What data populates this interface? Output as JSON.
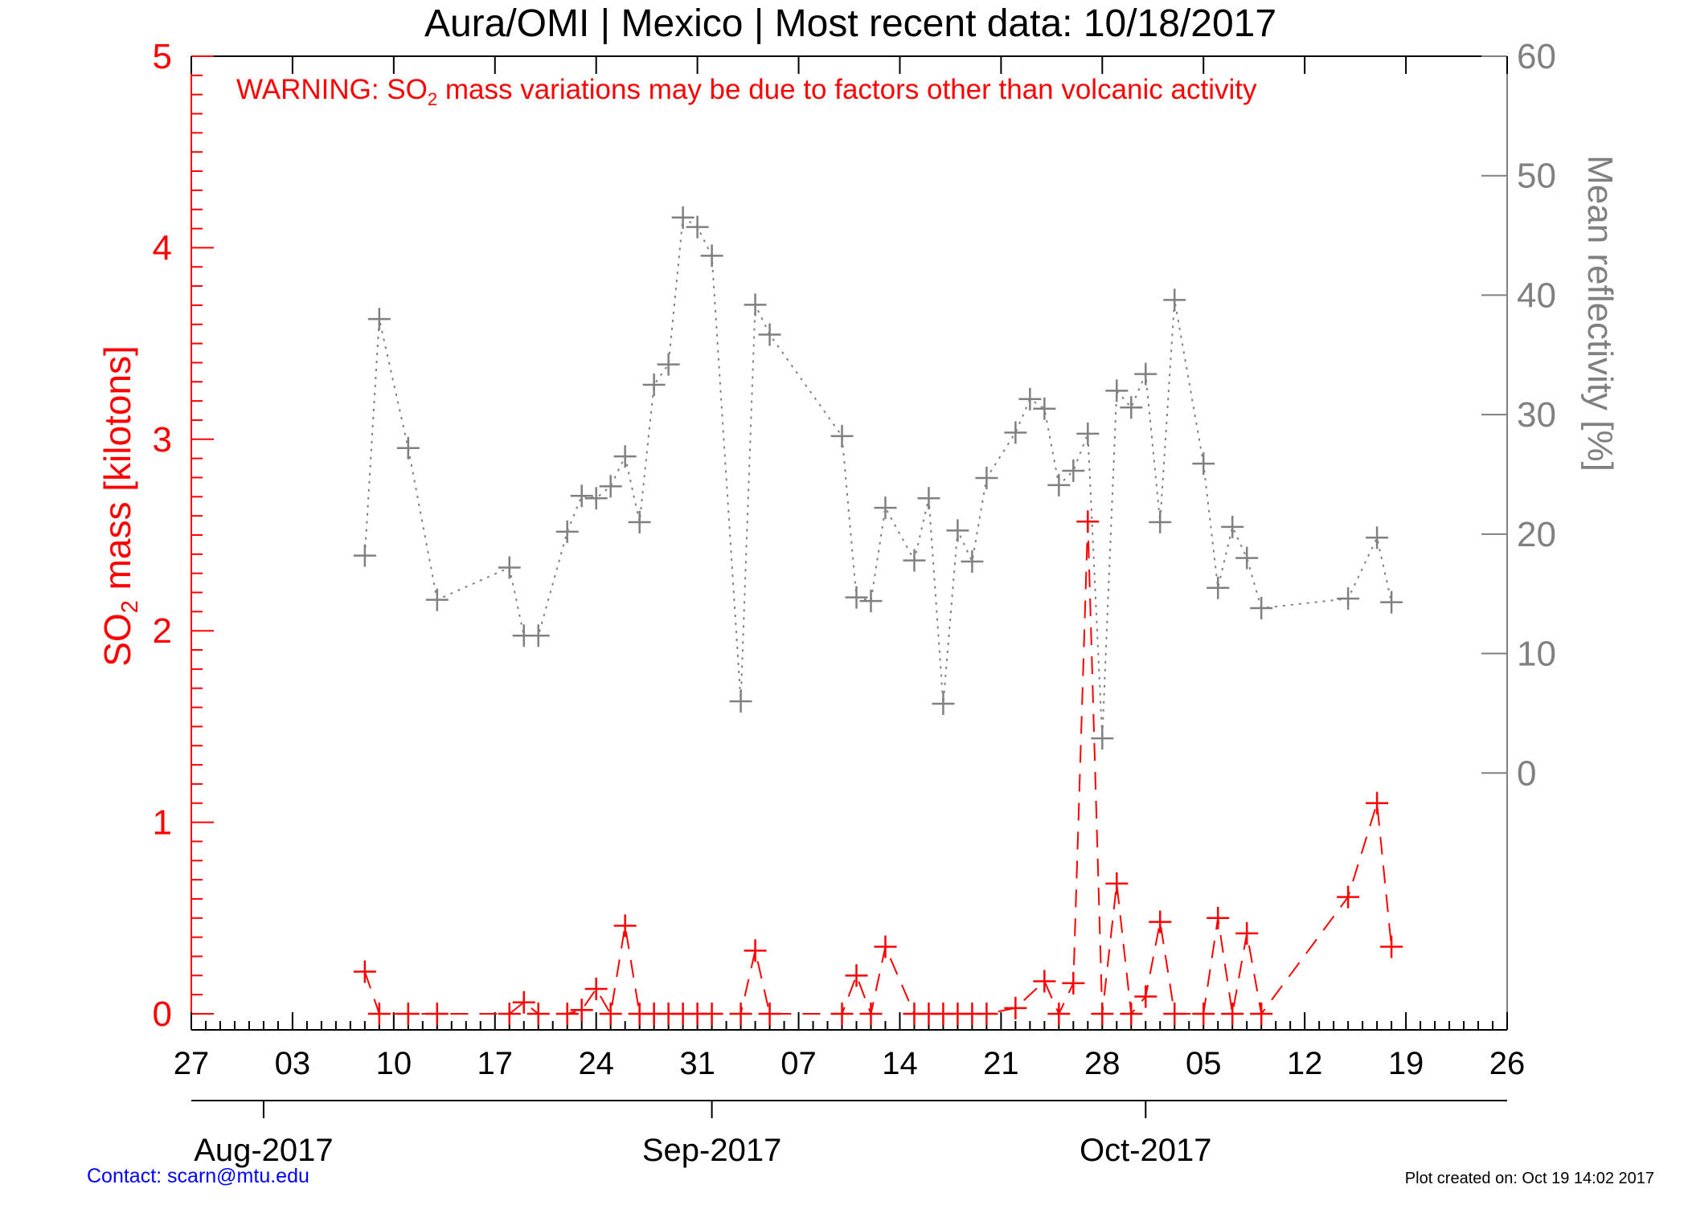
{
  "chart_data": {
    "type": "line",
    "title": "Aura/OMI | Mexico | Most recent data: 10/18/2017",
    "warning": {
      "prefix": "WARNING: SO",
      "subscript": "2",
      "suffix": " mass variations may be due to factors other than volcanic activity"
    },
    "ylabel_left": {
      "prefix": "SO",
      "subscript": "2",
      "suffix": " mass [kilotons]"
    },
    "ylabel_right": "Mean reflectivity [%]",
    "x_date_range": [
      "2017-07-27",
      "2017-10-26"
    ],
    "x_tick_labels": [
      "27",
      "03",
      "10",
      "17",
      "24",
      "31",
      "07",
      "14",
      "21",
      "28",
      "05",
      "12",
      "19",
      "26"
    ],
    "month_labels": [
      {
        "label": "Aug-2017",
        "date": "2017-08-01"
      },
      {
        "label": "Sep-2017",
        "date": "2017-09-01"
      },
      {
        "label": "Oct-2017",
        "date": "2017-10-01"
      }
    ],
    "ylim_left": [
      0,
      5
    ],
    "yticks_left": [
      "0",
      "1",
      "2",
      "3",
      "4",
      "5"
    ],
    "ylim_right_display": [
      -21.5,
      60
    ],
    "yticks_right": [
      "0",
      "10",
      "20",
      "30",
      "40",
      "50",
      "60"
    ],
    "series": [
      {
        "name": "SO2 mass",
        "axis": "left",
        "color": "#ff0000",
        "line_style": "dashed",
        "points": [
          [
            "2017-08-08",
            0.22
          ],
          [
            "2017-08-09",
            0.0
          ],
          [
            "2017-08-11",
            0.0
          ],
          [
            "2017-08-13",
            0.0
          ],
          [
            "2017-08-18",
            0.0
          ],
          [
            "2017-08-19",
            0.06
          ],
          [
            "2017-08-20",
            0.0
          ],
          [
            "2017-08-22",
            0.0
          ],
          [
            "2017-08-23",
            0.02
          ],
          [
            "2017-08-24",
            0.13
          ],
          [
            "2017-08-25",
            0.0
          ],
          [
            "2017-08-26",
            0.46
          ],
          [
            "2017-08-27",
            0.0
          ],
          [
            "2017-08-28",
            0.0
          ],
          [
            "2017-08-29",
            0.0
          ],
          [
            "2017-08-30",
            0.0
          ],
          [
            "2017-08-31",
            0.0
          ],
          [
            "2017-09-01",
            0.0
          ],
          [
            "2017-09-03",
            0.0
          ],
          [
            "2017-09-04",
            0.33
          ],
          [
            "2017-09-05",
            0.0
          ],
          [
            "2017-09-10",
            0.0
          ],
          [
            "2017-09-11",
            0.2
          ],
          [
            "2017-09-12",
            0.0
          ],
          [
            "2017-09-13",
            0.35
          ],
          [
            "2017-09-15",
            0.0
          ],
          [
            "2017-09-16",
            0.0
          ],
          [
            "2017-09-17",
            0.0
          ],
          [
            "2017-09-18",
            0.0
          ],
          [
            "2017-09-19",
            0.0
          ],
          [
            "2017-09-20",
            0.0
          ],
          [
            "2017-09-22",
            0.03
          ],
          [
            "2017-09-24",
            0.17
          ],
          [
            "2017-09-25",
            0.0
          ],
          [
            "2017-09-26",
            0.16
          ],
          [
            "2017-09-27",
            2.57
          ],
          [
            "2017-09-28",
            0.0
          ],
          [
            "2017-09-29",
            0.68
          ],
          [
            "2017-09-30",
            0.0
          ],
          [
            "2017-10-01",
            0.09
          ],
          [
            "2017-10-02",
            0.48
          ],
          [
            "2017-10-03",
            0.0
          ],
          [
            "2017-10-05",
            0.0
          ],
          [
            "2017-10-06",
            0.5
          ],
          [
            "2017-10-07",
            0.0
          ],
          [
            "2017-10-08",
            0.42
          ],
          [
            "2017-10-09",
            0.0
          ],
          [
            "2017-10-15",
            0.61
          ],
          [
            "2017-10-17",
            1.1
          ],
          [
            "2017-10-18",
            0.35
          ]
        ]
      },
      {
        "name": "Mean reflectivity",
        "axis": "right",
        "color": "#808080",
        "line_style": "dotted",
        "points": [
          [
            "2017-08-08",
            18.2
          ],
          [
            "2017-08-09",
            38.0
          ],
          [
            "2017-08-11",
            27.2
          ],
          [
            "2017-08-13",
            14.5
          ],
          [
            "2017-08-18",
            17.2
          ],
          [
            "2017-08-19",
            11.5
          ],
          [
            "2017-08-20",
            11.5
          ],
          [
            "2017-08-22",
            20.2
          ],
          [
            "2017-08-23",
            23.2
          ],
          [
            "2017-08-24",
            23.0
          ],
          [
            "2017-08-25",
            24.0
          ],
          [
            "2017-08-26",
            26.5
          ],
          [
            "2017-08-27",
            21.0
          ],
          [
            "2017-08-28",
            32.5
          ],
          [
            "2017-08-29",
            34.2
          ],
          [
            "2017-08-30",
            46.5
          ],
          [
            "2017-08-31",
            45.7
          ],
          [
            "2017-09-01",
            43.3
          ],
          [
            "2017-09-03",
            6.0
          ],
          [
            "2017-09-04",
            39.2
          ],
          [
            "2017-09-05",
            36.7
          ],
          [
            "2017-09-10",
            28.2
          ],
          [
            "2017-09-11",
            14.7
          ],
          [
            "2017-09-12",
            14.4
          ],
          [
            "2017-09-13",
            22.2
          ],
          [
            "2017-09-15",
            17.8
          ],
          [
            "2017-09-16",
            23.0
          ],
          [
            "2017-09-17",
            5.8
          ],
          [
            "2017-09-18",
            20.3
          ],
          [
            "2017-09-19",
            17.7
          ],
          [
            "2017-09-20",
            24.7
          ],
          [
            "2017-09-22",
            28.5
          ],
          [
            "2017-09-23",
            31.3
          ],
          [
            "2017-09-24",
            30.5
          ],
          [
            "2017-09-25",
            24.1
          ],
          [
            "2017-09-26",
            25.3
          ],
          [
            "2017-09-27",
            28.4
          ],
          [
            "2017-09-28",
            2.9
          ],
          [
            "2017-09-29",
            32.0
          ],
          [
            "2017-09-30",
            30.6
          ],
          [
            "2017-10-01",
            33.4
          ],
          [
            "2017-10-02",
            21.0
          ],
          [
            "2017-10-03",
            39.6
          ],
          [
            "2017-10-05",
            25.9
          ],
          [
            "2017-10-06",
            15.5
          ],
          [
            "2017-10-07",
            20.6
          ],
          [
            "2017-10-08",
            18.0
          ],
          [
            "2017-10-09",
            13.8
          ],
          [
            "2017-10-15",
            14.6
          ],
          [
            "2017-10-17",
            19.7
          ],
          [
            "2017-10-18",
            14.3
          ]
        ]
      }
    ]
  },
  "footer": {
    "contact": "Contact: scarn@mtu.edu",
    "created": "Plot created on: Oct 19 14:02 2017"
  },
  "colors": {
    "so2": "#ff0000",
    "reflectivity": "#808080",
    "axis": "#000000",
    "contact": "#0000ff"
  }
}
